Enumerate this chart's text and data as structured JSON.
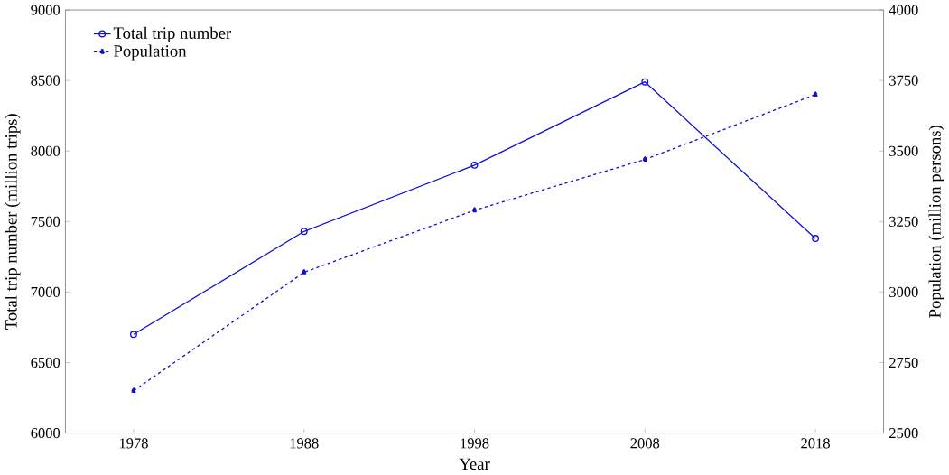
{
  "chart_data": {
    "type": "line",
    "xlabel": "Year",
    "ylabel": "Total trip number (million trips)",
    "y2label": "Population (million persons)",
    "x": [
      1978,
      1988,
      1998,
      2008,
      2018
    ],
    "series": [
      {
        "name": "Total trip number",
        "color": "#1010d0",
        "values": [
          6700,
          7430,
          7900,
          8490,
          7380
        ],
        "marker": "circle",
        "line_style": "solid"
      },
      {
        "name": "Population",
        "color": "#1010d0",
        "values": [
          2650,
          3070,
          3290,
          3470,
          3700
        ],
        "marker": "triangle",
        "line_style": "dashed",
        "axis": "y2"
      }
    ],
    "xlim": [
      1974,
      2022
    ],
    "xticks": [
      1978,
      1988,
      1998,
      2008,
      2018
    ],
    "ylim": [
      6000,
      9000
    ],
    "yticks": [
      6000,
      6500,
      7000,
      7500,
      8000,
      8500,
      9000
    ],
    "y2lim": [
      2500,
      4000
    ],
    "y2ticks": [
      2500,
      2750,
      3000,
      3250,
      3500,
      3750,
      4000
    ],
    "legend": "top left",
    "grid": false
  }
}
